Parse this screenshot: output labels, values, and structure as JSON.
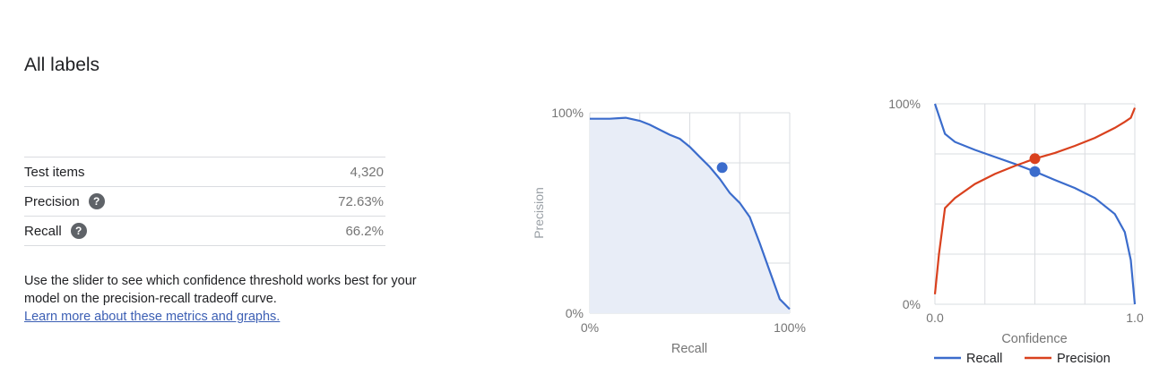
{
  "header": {
    "title": "All labels"
  },
  "metrics": [
    {
      "label": "Test items",
      "value": "4,320",
      "help": false
    },
    {
      "label": "Precision",
      "value": "72.63%",
      "help": true
    },
    {
      "label": "Recall",
      "value": "66.2%",
      "help": true
    }
  ],
  "description": {
    "text": "Use the slider to see which confidence threshold works best for your model on the precision-recall tradeoff curve.",
    "link": "Learn more about these metrics and graphs."
  },
  "colors": {
    "recall": "#3b6ccc",
    "precision": "#d9411e",
    "fill": "#e8edf7",
    "grid": "#dadce0",
    "axis_text": "#757575"
  },
  "chart_data": [
    {
      "type": "area",
      "xlabel": "Recall",
      "ylabel": "Precision",
      "xlim": [
        0,
        1
      ],
      "ylim": [
        0,
        1
      ],
      "x_tick_labels": [
        "0%",
        "100%"
      ],
      "y_tick_labels": [
        "0%",
        "100%"
      ],
      "grid": true,
      "x": [
        0,
        0.05,
        0.1,
        0.15,
        0.18,
        0.25,
        0.3,
        0.35,
        0.4,
        0.45,
        0.5,
        0.55,
        0.6,
        0.65,
        0.7,
        0.75,
        0.8,
        0.85,
        0.9,
        0.95,
        1.0
      ],
      "y": [
        0.97,
        0.97,
        0.97,
        0.973,
        0.975,
        0.96,
        0.94,
        0.915,
        0.89,
        0.87,
        0.83,
        0.78,
        0.73,
        0.67,
        0.6,
        0.55,
        0.48,
        0.35,
        0.21,
        0.07,
        0.02
      ],
      "marker": {
        "x": 0.662,
        "y": 0.7263
      }
    },
    {
      "type": "line",
      "xlabel": "Confidence",
      "xlim": [
        0,
        1
      ],
      "ylim": [
        0,
        1
      ],
      "x_tick_labels": [
        "0.0",
        "1.0"
      ],
      "y_tick_labels": [
        "0%",
        "100%"
      ],
      "grid": true,
      "legend_position": "bottom",
      "series": [
        {
          "name": "Recall",
          "x": [
            0,
            0.05,
            0.1,
            0.2,
            0.3,
            0.4,
            0.5,
            0.6,
            0.7,
            0.8,
            0.9,
            0.95,
            0.98,
            1.0
          ],
          "y": [
            1.0,
            0.85,
            0.81,
            0.77,
            0.735,
            0.7,
            0.662,
            0.62,
            0.58,
            0.53,
            0.45,
            0.36,
            0.22,
            0.0
          ]
        },
        {
          "name": "Precision",
          "x": [
            0,
            0.02,
            0.05,
            0.1,
            0.2,
            0.3,
            0.4,
            0.5,
            0.6,
            0.7,
            0.8,
            0.9,
            0.95,
            0.98,
            1.0
          ],
          "y": [
            0.05,
            0.25,
            0.48,
            0.53,
            0.6,
            0.65,
            0.69,
            0.7263,
            0.755,
            0.79,
            0.83,
            0.88,
            0.91,
            0.93,
            0.98
          ]
        }
      ],
      "markers": [
        {
          "series": "Precision",
          "x": 0.5,
          "y": 0.7263
        },
        {
          "series": "Recall",
          "x": 0.5,
          "y": 0.662
        }
      ]
    }
  ]
}
